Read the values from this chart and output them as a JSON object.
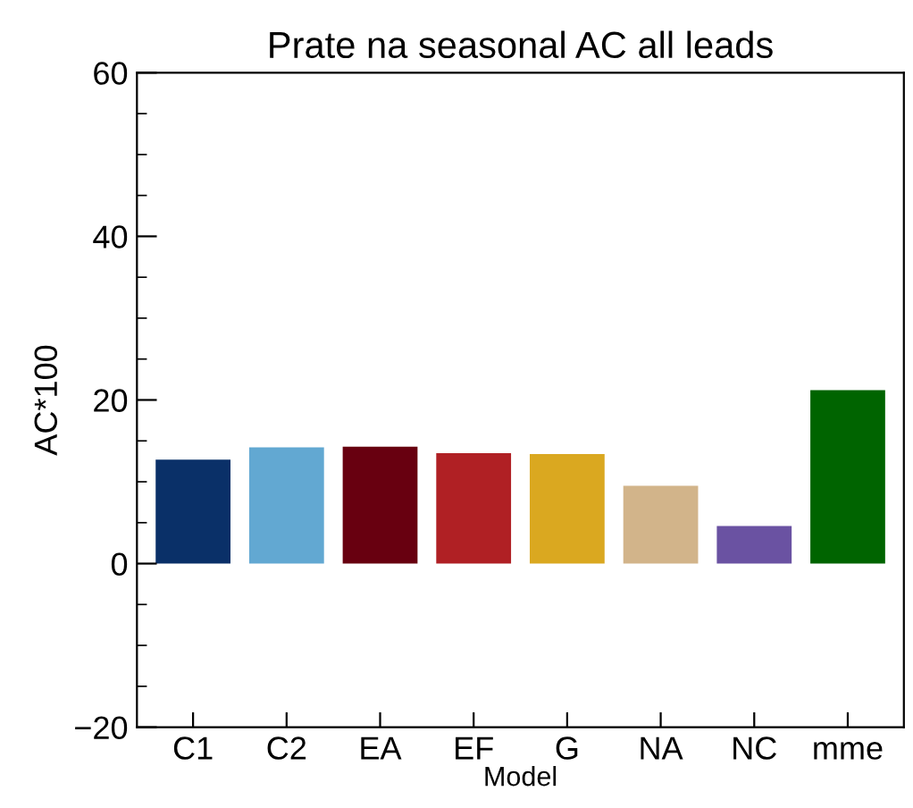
{
  "chart_data": {
    "type": "bar",
    "title": "Prate na seasonal AC all leads",
    "xlabel": "Model",
    "ylabel": "AC*100",
    "categories": [
      "C1",
      "C2",
      "EA",
      "EF",
      "G",
      "NA",
      "NC",
      "mme"
    ],
    "values": [
      12.7,
      14.2,
      14.3,
      13.5,
      13.4,
      9.5,
      4.6,
      21.2
    ],
    "colors": [
      "#0a3068",
      "#62a8d2",
      "#680010",
      "#b02024",
      "#daa820",
      "#d2b48a",
      "#6a52a2",
      "#006400"
    ],
    "ylim": [
      -20,
      60
    ],
    "yticks": [
      {
        "value": -20,
        "label": "−20"
      },
      0,
      20,
      40,
      60
    ],
    "grid": false,
    "legend": false
  }
}
